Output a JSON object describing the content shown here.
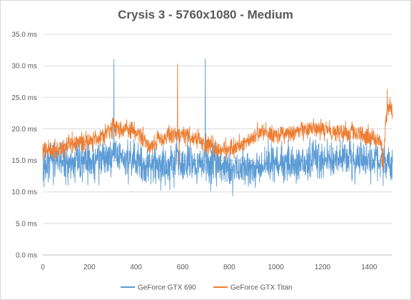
{
  "chart_data": {
    "type": "line",
    "title": "Crysis 3 - 5760x1080 - Medium",
    "xlabel": "",
    "ylabel": "",
    "xlim": [
      0,
      1500
    ],
    "ylim": [
      0,
      35
    ],
    "x_ticks": [
      "0",
      "200",
      "400",
      "600",
      "800",
      "1000",
      "1200",
      "1400"
    ],
    "y_ticks": [
      "0.0 ms",
      "5.0 ms",
      "10.0 ms",
      "15.0 ms",
      "20.0 ms",
      "25.0 ms",
      "30.0 ms",
      "35.0 ms"
    ],
    "grid": "horizontal",
    "legend_position": "bottom",
    "series": [
      {
        "name": "GeForce GTX 690",
        "color": "#5b9bd5",
        "baseline": [
          [
            0,
            14.5
          ],
          [
            50,
            14.8
          ],
          [
            100,
            14.5
          ],
          [
            150,
            14.8
          ],
          [
            200,
            14.6
          ],
          [
            250,
            14.7
          ],
          [
            300,
            15.5
          ],
          [
            350,
            15.2
          ],
          [
            400,
            14.8
          ],
          [
            450,
            14.5
          ],
          [
            500,
            14.3
          ],
          [
            550,
            14.5
          ],
          [
            600,
            14.7
          ],
          [
            650,
            15.0
          ],
          [
            700,
            14.6
          ],
          [
            750,
            14.3
          ],
          [
            800,
            13.5
          ],
          [
            850,
            13.8
          ],
          [
            900,
            14.0
          ],
          [
            950,
            14.2
          ],
          [
            1000,
            14.4
          ],
          [
            1050,
            14.6
          ],
          [
            1100,
            14.7
          ],
          [
            1150,
            14.8
          ],
          [
            1200,
            14.9
          ],
          [
            1250,
            15.0
          ],
          [
            1300,
            15.2
          ],
          [
            1350,
            15.0
          ],
          [
            1400,
            14.8
          ],
          [
            1450,
            14.5
          ],
          [
            1500,
            14.5
          ]
        ],
        "noise": 2.6,
        "spikes": [
          {
            "x": 305,
            "y": 31.0
          },
          {
            "x": 575,
            "y": 19.5
          },
          {
            "x": 697,
            "y": 31.1
          },
          {
            "x": 1460,
            "y": 11.0
          }
        ]
      },
      {
        "name": "GeForce GTX Titan",
        "color": "#ed7d31",
        "baseline": [
          [
            0,
            16.5
          ],
          [
            50,
            16.8
          ],
          [
            100,
            17.2
          ],
          [
            150,
            17.8
          ],
          [
            200,
            18.2
          ],
          [
            250,
            18.8
          ],
          [
            280,
            20.0
          ],
          [
            300,
            20.2
          ],
          [
            350,
            20.0
          ],
          [
            400,
            19.5
          ],
          [
            430,
            18.5
          ],
          [
            460,
            17.2
          ],
          [
            500,
            18.5
          ],
          [
            550,
            19.0
          ],
          [
            600,
            19.2
          ],
          [
            650,
            18.5
          ],
          [
            700,
            17.5
          ],
          [
            750,
            16.8
          ],
          [
            800,
            16.8
          ],
          [
            850,
            17.5
          ],
          [
            900,
            18.8
          ],
          [
            950,
            19.5
          ],
          [
            1000,
            19.2
          ],
          [
            1050,
            19.0
          ],
          [
            1100,
            19.5
          ],
          [
            1150,
            20.0
          ],
          [
            1200,
            19.8
          ],
          [
            1250,
            19.8
          ],
          [
            1300,
            19.5
          ],
          [
            1350,
            19.0
          ],
          [
            1400,
            18.8
          ],
          [
            1430,
            18.6
          ],
          [
            1450,
            18.0
          ],
          [
            1460,
            14.5
          ],
          [
            1470,
            20.5
          ],
          [
            1480,
            23.0
          ],
          [
            1490,
            23.5
          ],
          [
            1500,
            22.5
          ]
        ],
        "noise": 1.3,
        "spikes": [
          {
            "x": 578,
            "y": 30.3
          },
          {
            "x": 585,
            "y": 14.2
          },
          {
            "x": 1478,
            "y": 26.3
          }
        ]
      }
    ]
  }
}
